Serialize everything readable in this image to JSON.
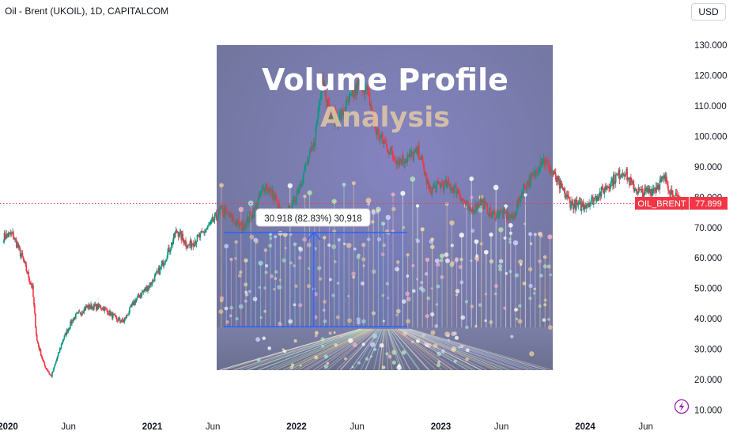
{
  "header": {
    "symbol_title": "Oil - Brent (UKOIL), 1D, CAPITALCOM",
    "currency": "USD"
  },
  "overlay": {
    "title_line1": "Volume Profile",
    "title_line2": "Analysis"
  },
  "measure": {
    "label": "30.918 (82.83%) 30,918"
  },
  "price_badge": {
    "symbol": "OIL_BRENT",
    "value": "77.899",
    "color": "#f23645"
  },
  "colors": {
    "up": "#089981",
    "down": "#f23645",
    "overlay_bg": "#7c7fa9",
    "measure": "#2962ff"
  },
  "chart_data": {
    "type": "candlestick",
    "title": "Oil - Brent (UKOIL), 1D, CAPITALCOM",
    "y_ticks": [
      "130.000",
      "120.000",
      "110.000",
      "100.000",
      "90.000",
      "80.000",
      "70.000",
      "60.000",
      "50.000",
      "40.000",
      "30.000",
      "20.000",
      "10.000"
    ],
    "ylim": [
      10,
      130
    ],
    "x_ticks": [
      {
        "label": "2020",
        "t": 2020.0,
        "bold": true
      },
      {
        "label": "Jun",
        "t": 2020.42,
        "bold": false
      },
      {
        "label": "2021",
        "t": 2021.0,
        "bold": true
      },
      {
        "label": "Jun",
        "t": 2021.42,
        "bold": false
      },
      {
        "label": "2022",
        "t": 2022.0,
        "bold": true
      },
      {
        "label": "Jun",
        "t": 2022.42,
        "bold": false
      },
      {
        "label": "2023",
        "t": 2023.0,
        "bold": true
      },
      {
        "label": "Jun",
        "t": 2023.42,
        "bold": false
      },
      {
        "label": "2024",
        "t": 2024.0,
        "bold": true
      },
      {
        "label": "Jun",
        "t": 2024.42,
        "bold": false
      }
    ],
    "close_path": [
      [
        2019.97,
        67
      ],
      [
        2020.03,
        68
      ],
      [
        2020.1,
        60
      ],
      [
        2020.17,
        50
      ],
      [
        2020.2,
        33
      ],
      [
        2020.25,
        25
      ],
      [
        2020.3,
        21
      ],
      [
        2020.38,
        33
      ],
      [
        2020.45,
        40
      ],
      [
        2020.55,
        44
      ],
      [
        2020.65,
        44
      ],
      [
        2020.75,
        40
      ],
      [
        2020.8,
        39
      ],
      [
        2020.88,
        46
      ],
      [
        2020.98,
        51
      ],
      [
        2021.05,
        56
      ],
      [
        2021.12,
        63
      ],
      [
        2021.17,
        69
      ],
      [
        2021.25,
        64
      ],
      [
        2021.33,
        67
      ],
      [
        2021.42,
        72
      ],
      [
        2021.48,
        76
      ],
      [
        2021.55,
        73
      ],
      [
        2021.62,
        70
      ],
      [
        2021.7,
        75
      ],
      [
        2021.78,
        84
      ],
      [
        2021.85,
        80
      ],
      [
        2021.9,
        73
      ],
      [
        2021.97,
        77
      ],
      [
        2022.05,
        88
      ],
      [
        2022.12,
        97
      ],
      [
        2022.18,
        120
      ],
      [
        2022.23,
        107
      ],
      [
        2022.3,
        106
      ],
      [
        2022.37,
        112
      ],
      [
        2022.45,
        118
      ],
      [
        2022.5,
        113
      ],
      [
        2022.55,
        102
      ],
      [
        2022.62,
        97
      ],
      [
        2022.7,
        92
      ],
      [
        2022.78,
        93
      ],
      [
        2022.85,
        95
      ],
      [
        2022.92,
        82
      ],
      [
        2022.99,
        84
      ],
      [
        2023.05,
        84
      ],
      [
        2023.12,
        82
      ],
      [
        2023.2,
        75
      ],
      [
        2023.28,
        79
      ],
      [
        2023.35,
        74
      ],
      [
        2023.42,
        75
      ],
      [
        2023.5,
        73
      ],
      [
        2023.58,
        84
      ],
      [
        2023.65,
        87
      ],
      [
        2023.7,
        93
      ],
      [
        2023.75,
        90
      ],
      [
        2023.82,
        84
      ],
      [
        2023.9,
        78
      ],
      [
        2023.97,
        77
      ],
      [
        2024.05,
        79
      ],
      [
        2024.12,
        82
      ],
      [
        2024.2,
        86
      ],
      [
        2024.27,
        89
      ],
      [
        2024.32,
        84
      ],
      [
        2024.4,
        81
      ],
      [
        2024.48,
        83
      ],
      [
        2024.55,
        86
      ],
      [
        2024.62,
        80
      ],
      [
        2024.67,
        78
      ]
    ],
    "last_value": 77.899,
    "legend": "none",
    "grid": false
  }
}
